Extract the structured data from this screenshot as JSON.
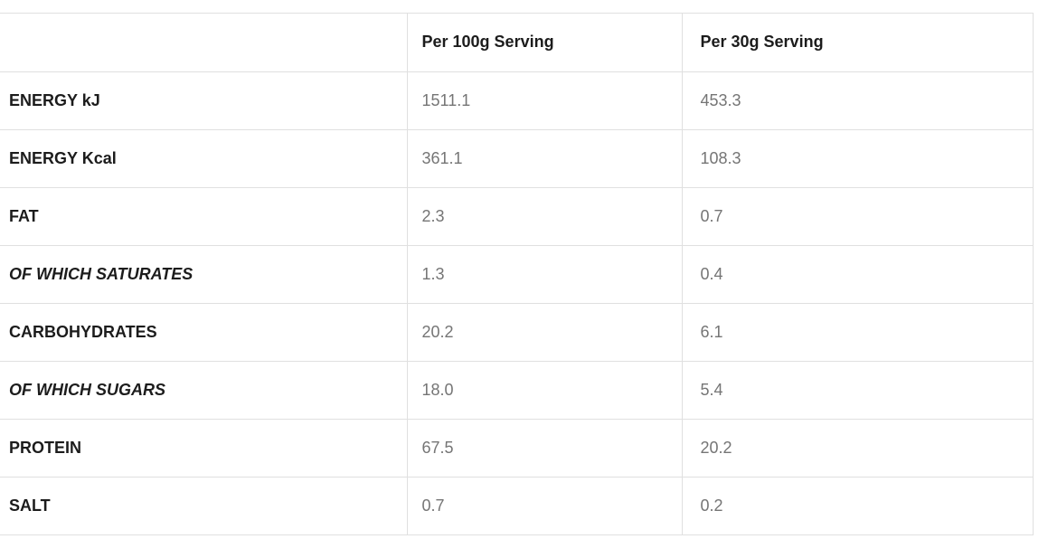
{
  "table": {
    "columns": {
      "label": "",
      "per_100g": "Per 100g Serving",
      "per_30g": "Per 30g Serving"
    },
    "rows": [
      {
        "label": "ENERGY kJ",
        "per_100g": "1511.1",
        "per_30g": "453.3"
      },
      {
        "label": "ENERGY Kcal",
        "per_100g": "361.1",
        "per_30g": "108.3"
      },
      {
        "label": "FAT",
        "per_100g": "2.3",
        "per_30g": "0.7"
      },
      {
        "label": "OF WHICH SATURATES",
        "per_100g": "1.3",
        "per_30g": "0.4"
      },
      {
        "label": "CARBOHYDRATES",
        "per_100g": "20.2",
        "per_30g": "6.1"
      },
      {
        "label": "OF WHICH SUGARS",
        "per_100g": "18.0",
        "per_30g": "5.4"
      },
      {
        "label": "PROTEIN",
        "per_100g": "67.5",
        "per_30g": "20.2"
      },
      {
        "label": "SALT",
        "per_100g": "0.7",
        "per_30g": "0.2"
      }
    ],
    "colors": {
      "border": "#e0e0e0",
      "heading_text": "#1c1c1c",
      "value_text": "#757575",
      "background": "#ffffff"
    }
  }
}
